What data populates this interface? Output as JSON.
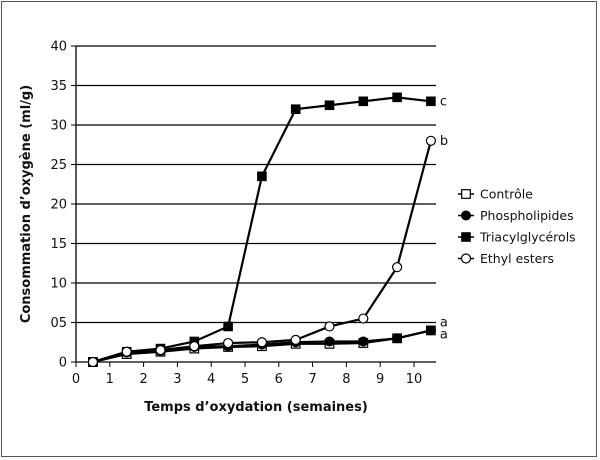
{
  "chart_data": {
    "type": "line",
    "title": "",
    "xlabel": "Temps d’oxydation (semaines)",
    "ylabel": "Consommation d’oxygène (ml/g)",
    "xlim": [
      0,
      11
    ],
    "ylim": [
      0,
      40
    ],
    "x_ticks": [
      "0",
      "1",
      "2",
      "3",
      "4",
      "5",
      "6",
      "7",
      "8",
      "9",
      "10"
    ],
    "y_ticks": [
      "0",
      "05",
      "10",
      "15",
      "20",
      "25",
      "30",
      "35",
      "40"
    ],
    "grid": "horizontal",
    "legend_position": "right",
    "series": [
      {
        "name": "Contrôle",
        "marker": "square-open",
        "x": [
          0.5,
          1.5,
          2.5,
          3.5,
          4.5,
          5.5,
          6.5,
          7.5,
          8.5,
          9.5,
          10.5
        ],
        "y": [
          0,
          1.0,
          1.3,
          1.7,
          1.9,
          2.0,
          2.3,
          2.3,
          2.4,
          3.0,
          4.0
        ]
      },
      {
        "name": "Phospholipides",
        "marker": "circle-filled",
        "x": [
          0.5,
          1.5,
          2.5,
          3.5,
          4.5,
          5.5,
          6.5,
          7.5,
          8.5,
          9.5,
          10.5
        ],
        "y": [
          0,
          1.2,
          1.4,
          1.9,
          2.0,
          2.2,
          2.5,
          2.6,
          2.6,
          3.0,
          4.0
        ]
      },
      {
        "name": "Triacylglycérols",
        "marker": "square-filled",
        "x": [
          0.5,
          1.5,
          2.5,
          3.5,
          4.5,
          5.5,
          6.5,
          7.5,
          8.5,
          9.5,
          10.5
        ],
        "y": [
          0,
          1.3,
          1.7,
          2.6,
          4.5,
          23.5,
          32.0,
          32.5,
          33.0,
          33.5,
          33.0
        ]
      },
      {
        "name": "Ethyl esters",
        "marker": "circle-open",
        "x": [
          0.5,
          1.5,
          2.5,
          3.5,
          4.5,
          5.5,
          6.5,
          7.5,
          8.5,
          9.5,
          10.5
        ],
        "y": [
          0,
          1.3,
          1.5,
          2.0,
          2.4,
          2.5,
          2.8,
          4.5,
          5.5,
          12.0,
          28.0
        ]
      }
    ],
    "annotations": [
      {
        "text": "c",
        "x": 10.5,
        "y": 33.0
      },
      {
        "text": "b",
        "x": 10.5,
        "y": 28.0
      },
      {
        "text": "a",
        "x": 10.5,
        "y": 5.0
      },
      {
        "text": "a",
        "x": 10.5,
        "y": 3.5
      }
    ]
  }
}
